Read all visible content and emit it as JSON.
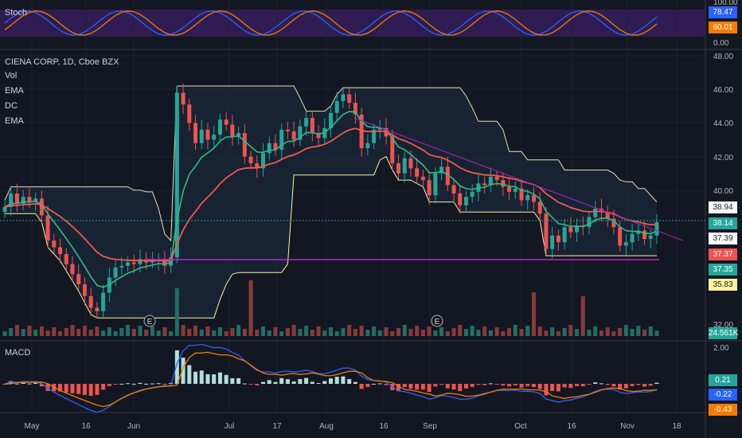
{
  "chart_data": {
    "type": "line",
    "header": {
      "symbol_line": "CIENA CORP, 1D, Cboe BZX",
      "indicators": [
        "Vol",
        "EMA",
        "DC",
        "EMA"
      ],
      "stoch_label": "Stoch",
      "macd_label": "MACD"
    },
    "x_ticks": [
      "May",
      "16",
      "Jun",
      "Jul",
      "17",
      "Aug",
      "16",
      "Sep",
      "Oct",
      "16",
      "Nov",
      "18"
    ],
    "price_axis": {
      "ticks": [
        "48.00",
        "46.00",
        "44.00",
        "42.00",
        "40.00",
        "32.00"
      ],
      "range": [
        32,
        48
      ]
    },
    "stoch_axis": {
      "ticks": [
        "100.00",
        "0.00"
      ]
    },
    "macd_axis": {
      "ticks": [
        "2.00"
      ]
    },
    "badges": [
      {
        "id": "stoch_k",
        "text": "78.47",
        "color": "#2962ff"
      },
      {
        "id": "stoch_d",
        "text": "60.01",
        "color": "#f57c00"
      },
      {
        "id": "dc_upper",
        "text": "38.94",
        "color": "#ffffff",
        "dark": true
      },
      {
        "id": "last",
        "text": "38.14",
        "color": "#26a69a"
      },
      {
        "id": "ema_fast",
        "text": "37.39",
        "color": "#ffffff",
        "dark": true
      },
      {
        "id": "ema_slow",
        "text": "37.37",
        "color": "#ef5350"
      },
      {
        "id": "ema_green",
        "text": "37.35",
        "color": "#26a69a"
      },
      {
        "id": "dc_lower",
        "text": "35.83",
        "color": "#fff59d",
        "dark": true
      },
      {
        "id": "vol",
        "text": "24.561K",
        "color": "#26a69a"
      },
      {
        "id": "macd_hist",
        "text": "0.21",
        "color": "#26a69a"
      },
      {
        "id": "macd_line",
        "text": "-0.22",
        "color": "#2962ff"
      },
      {
        "id": "macd_signal",
        "text": "-0.43",
        "color": "#f57c00"
      }
    ],
    "earnings_markers": [
      "E",
      "E"
    ],
    "close_series": [
      39.0,
      39.8,
      39.2,
      39.6,
      39.3,
      39.5,
      38.5,
      37.0,
      36.6,
      36.2,
      35.6,
      35.0,
      34.4,
      33.7,
      33.0,
      32.8,
      33.9,
      34.8,
      35.4,
      35.5,
      35.7,
      35.6,
      35.9,
      35.7,
      35.8,
      35.9,
      35.5,
      36.0,
      45.8,
      45.1,
      44.0,
      42.8,
      43.6,
      43.0,
      43.3,
      44.2,
      43.9,
      43.2,
      43.4,
      42.0,
      41.6,
      41.3,
      42.2,
      42.8,
      42.4,
      43.6,
      43.5,
      43.0,
      43.8,
      44.3,
      43.4,
      43.1,
      43.7,
      44.6,
      45.3,
      45.7,
      45.2,
      44.5,
      42.5,
      42.8,
      43.6,
      43.7,
      43.2,
      41.6,
      41.0,
      41.9,
      41.3,
      40.8,
      40.6,
      39.7,
      41.0,
      41.4,
      40.3,
      39.8,
      39.1,
      39.6,
      39.9,
      40.4,
      40.3,
      40.8,
      40.6,
      40.2,
      39.9,
      40.1,
      39.4,
      39.7,
      39.3,
      38.6,
      36.5,
      37.3,
      36.9,
      37.8,
      37.5,
      37.9,
      37.8,
      38.4,
      38.9,
      38.7,
      38.3,
      37.8,
      36.7,
      36.9,
      37.4,
      37.6,
      37.1,
      37.3,
      38.1
    ]
  }
}
